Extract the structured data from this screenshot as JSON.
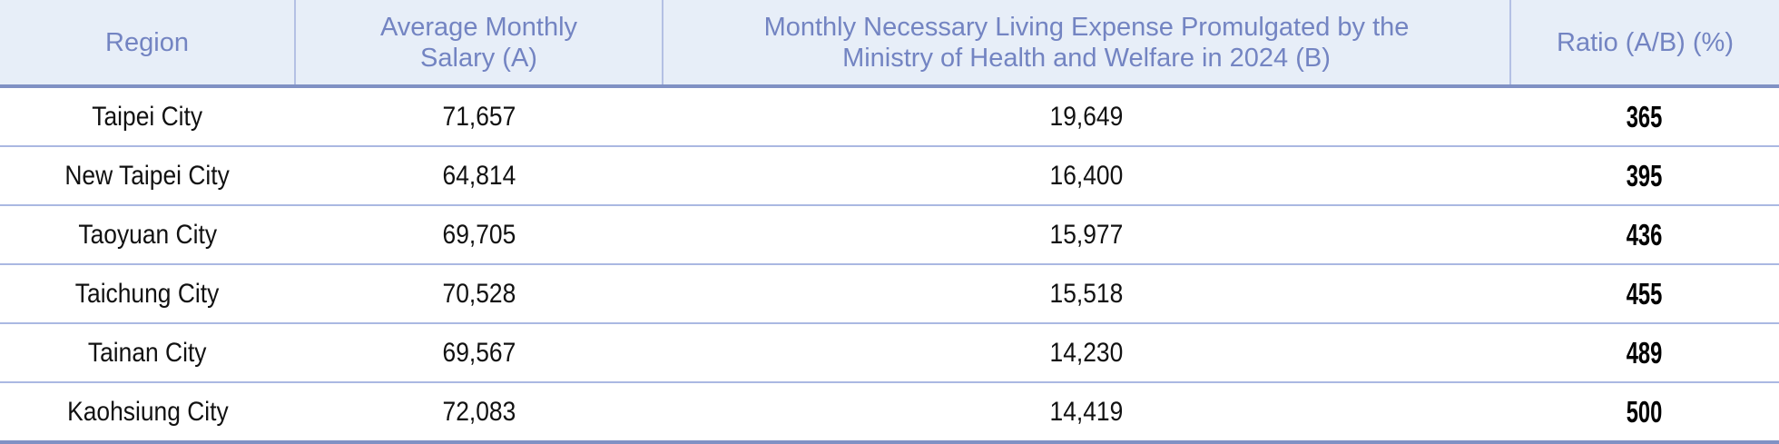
{
  "table": {
    "headers": [
      "Region",
      "Average Monthly Salary (A)",
      "Monthly Necessary Living Expense Promulgated by the Ministry of Health and Welfare in 2024 (B)",
      "Ratio (A/B) (%)"
    ],
    "rows": [
      {
        "region": "Taipei City",
        "salary": "71,657",
        "expense": "19,649",
        "ratio": "365"
      },
      {
        "region": "New Taipei City",
        "salary": "64,814",
        "expense": "16,400",
        "ratio": "395"
      },
      {
        "region": "Taoyuan City",
        "salary": "69,705",
        "expense": "15,977",
        "ratio": "436"
      },
      {
        "region": "Taichung City",
        "salary": "70,528",
        "expense": "15,518",
        "ratio": "455"
      },
      {
        "region": "Tainan City",
        "salary": "69,567",
        "expense": "14,230",
        "ratio": "489"
      },
      {
        "region": "Kaohsiung City",
        "salary": "72,083",
        "expense": "14,419",
        "ratio": "500"
      }
    ]
  },
  "colors": {
    "header_bg": "#e7eef8",
    "header_text": "#7384c2",
    "rule": "#8091c4"
  }
}
